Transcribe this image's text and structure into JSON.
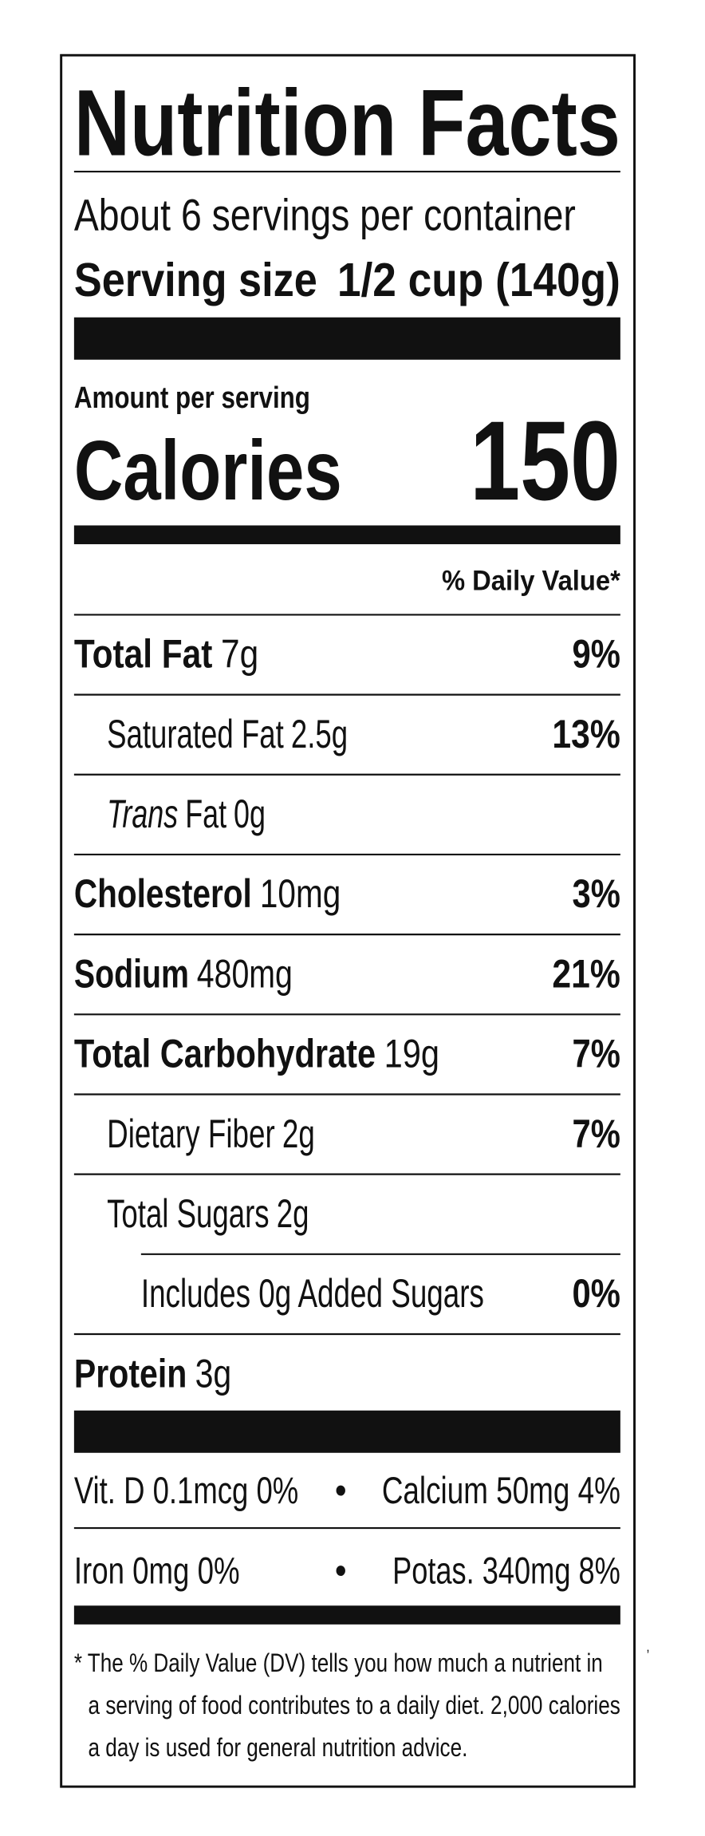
{
  "header": {
    "title": "Nutrition Facts",
    "servings": "About 6 servings per container",
    "serving_size_label": "Serving size",
    "serving_size_value": "1/2 cup (140g)"
  },
  "calories": {
    "amount_label": "Amount per serving",
    "label": "Calories",
    "value": "150"
  },
  "daily_value_header": "% Daily Value*",
  "nutrients": [
    {
      "name": "Total Fat",
      "amount": "7g",
      "dv": "9%",
      "indent": 0
    },
    {
      "name": "Saturated Fat",
      "amount": "2.5g",
      "dv": "13%",
      "indent": 1
    },
    {
      "name_italic": "Trans",
      "name": "Fat",
      "amount": "0g",
      "indent": 1
    },
    {
      "name": "Cholesterol",
      "amount": "10mg",
      "dv": "3%",
      "indent": 0
    },
    {
      "name": "Sodium",
      "amount": "480mg",
      "dv": "21%",
      "indent": 0
    },
    {
      "name": "Total Carbohydrate",
      "amount": "19g",
      "dv": "7%",
      "indent": 0
    },
    {
      "name": "Dietary Fiber",
      "amount": "2g",
      "dv": "7%",
      "indent": 1
    },
    {
      "name": "Total Sugars",
      "amount": "2g",
      "indent": 1
    },
    {
      "name": "Includes 0g Added Sugars",
      "dv": "0%",
      "indent": 2
    },
    {
      "name": "Protein",
      "amount": "3g",
      "indent": 0
    }
  ],
  "vitamins": [
    {
      "left": "Vit. D 0.1mcg 0%",
      "separator": "•",
      "right": "Calcium 50mg 4%"
    },
    {
      "left": "Iron 0mg 0%",
      "separator": "•",
      "right": "Potas. 340mg 8%"
    }
  ],
  "footnote": [
    "* The % Daily Value (DV) tells you how much a nutrient in",
    "a serving of food contributes to a daily diet. 2,000 calories",
    "a day is used for general nutrition advice."
  ],
  "stray_mark": ","
}
